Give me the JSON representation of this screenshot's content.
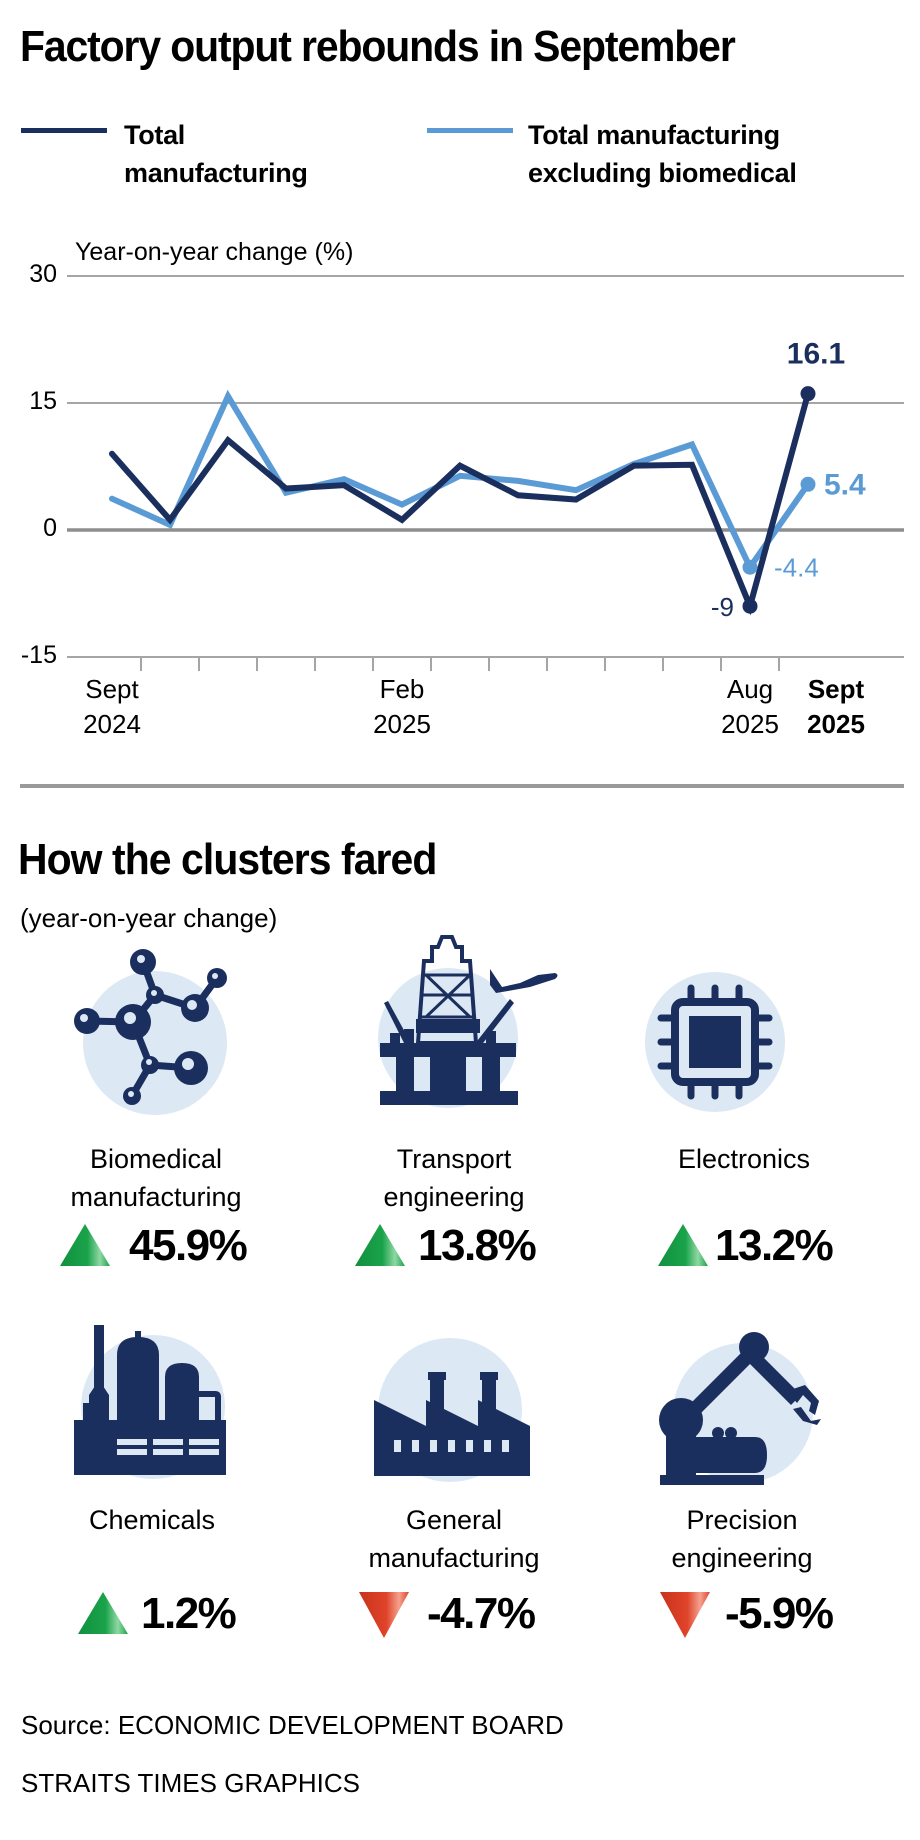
{
  "title": "Factory output rebounds in September",
  "legend": [
    {
      "label_line1": "Total",
      "label_line2": "manufacturing",
      "color": "#1b2f5e"
    },
    {
      "label_line1": "Total manufacturing",
      "label_line2": "excluding biomedical",
      "color": "#5b9bd5"
    }
  ],
  "chart_data": {
    "type": "line",
    "title": "Factory output rebounds in September",
    "ylabel": "Year-on-year change (%)",
    "xlabel": "",
    "ylim": [
      -15,
      30
    ],
    "yticks": [
      30,
      15,
      0,
      -15
    ],
    "grid": true,
    "legend_position": "top",
    "x": [
      "Sept 2024",
      "Oct 2024",
      "Nov 2024",
      "Dec 2024",
      "Jan 2025",
      "Feb 2025",
      "Mar 2025",
      "Apr 2025",
      "May 2025",
      "Jun 2025",
      "Jul 2025",
      "Aug 2025",
      "Sept 2025"
    ],
    "xtick_labels": [
      {
        "index": 0,
        "line1": "Sept",
        "line2": "2024",
        "bold": false
      },
      {
        "index": 5,
        "line1": "Feb",
        "line2": "2025",
        "bold": false
      },
      {
        "index": 11,
        "line1": "Aug",
        "line2": "2025",
        "bold": false
      },
      {
        "index": 12,
        "line1": "Sept",
        "line2": "2025",
        "bold": true
      }
    ],
    "series": [
      {
        "name": "Total manufacturing",
        "color": "#1b2f5e",
        "values": [
          9.0,
          1.2,
          10.6,
          4.9,
          5.3,
          1.2,
          7.6,
          4.1,
          3.6,
          7.6,
          7.7,
          -9.0,
          16.1
        ]
      },
      {
        "name": "Total manufacturing excluding biomedical",
        "color": "#5b9bd5",
        "values": [
          3.7,
          0.6,
          15.8,
          4.4,
          6.0,
          3.0,
          6.4,
          5.8,
          4.7,
          7.8,
          10.1,
          -4.4,
          5.4
        ]
      }
    ],
    "annotations": [
      {
        "series": 0,
        "index": 12,
        "text": "16.1",
        "bold": true
      },
      {
        "series": 1,
        "index": 12,
        "text": "5.4",
        "bold": true
      },
      {
        "series": 0,
        "index": 11,
        "text": "-9",
        "bold": false
      },
      {
        "series": 1,
        "index": 11,
        "text": "-4.4",
        "bold": false
      }
    ]
  },
  "clusters_section": {
    "heading": "How the clusters fared",
    "subheading": "(year-on-year change)",
    "items": [
      {
        "icon": "molecule-icon",
        "label_line1": "Biomedical",
        "label_line2": "manufacturing",
        "value": "45.9%",
        "direction": "up"
      },
      {
        "icon": "oil-rig-airplane-icon",
        "label_line1": "Transport",
        "label_line2": "engineering",
        "value": "13.8%",
        "direction": "up"
      },
      {
        "icon": "microchip-icon",
        "label_line1": "Electronics",
        "label_line2": "",
        "value": "13.2%",
        "direction": "up"
      },
      {
        "icon": "chemical-plant-icon",
        "label_line1": "Chemicals",
        "label_line2": "",
        "value": "1.2%",
        "direction": "up"
      },
      {
        "icon": "factory-icon",
        "label_line1": "General",
        "label_line2": "manufacturing",
        "value": "-4.7%",
        "direction": "down"
      },
      {
        "icon": "robotic-arm-icon",
        "label_line1": "Precision",
        "label_line2": "engineering",
        "value": "-5.9%",
        "direction": "down"
      }
    ]
  },
  "colors": {
    "navy": "#1b2f5e",
    "light_blue": "#5b9bd5",
    "circle_bg": "#dde8f5",
    "up": "#1aa34a",
    "down": "#e0442a",
    "grid": "#9a9a9a"
  },
  "source": "Source: ECONOMIC DEVELOPMENT BOARD",
  "credit": "STRAITS TIMES GRAPHICS"
}
